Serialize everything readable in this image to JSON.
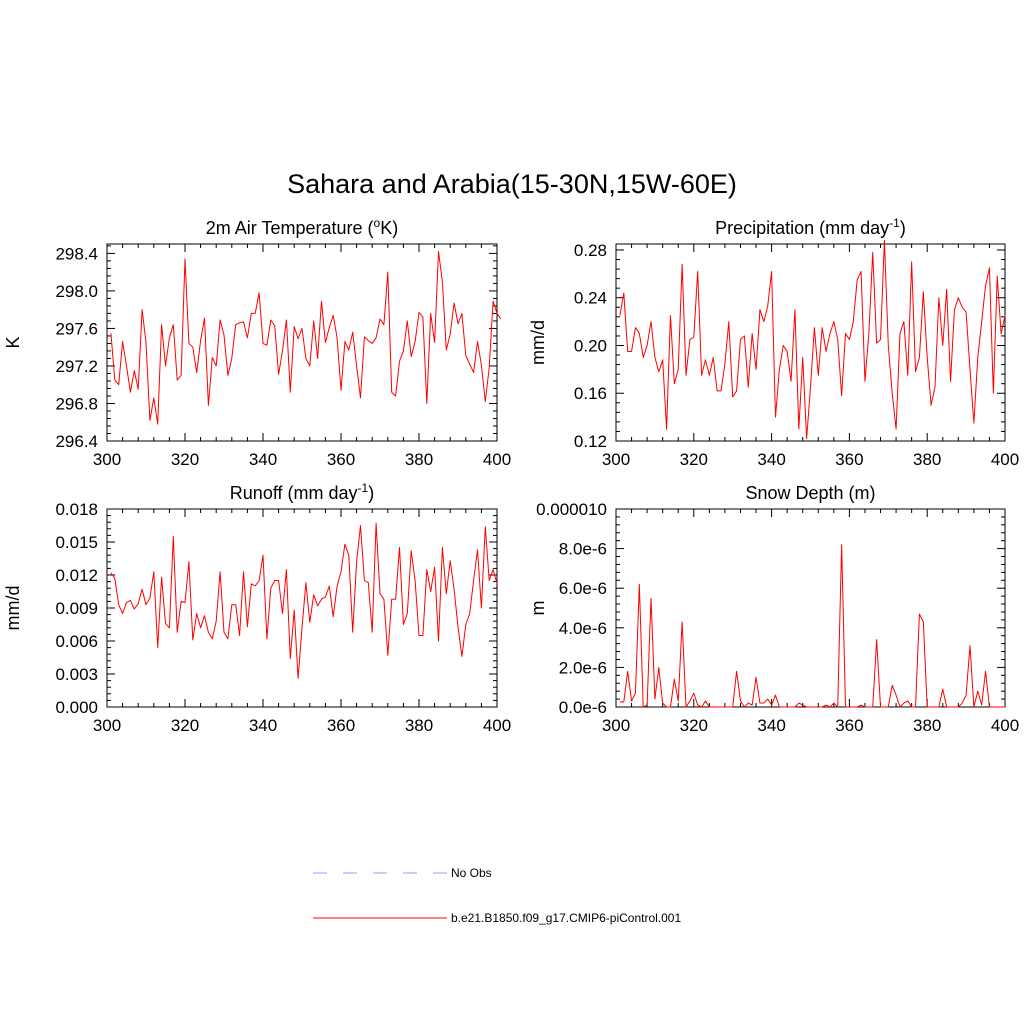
{
  "title": "Sahara and Arabia(15-30N,15W-60E)",
  "colors": {
    "model": "#ff0000",
    "obs": "#9999ff",
    "axis": "#000000"
  },
  "legend": [
    {
      "label": "No Obs",
      "style": "dashed",
      "color": "#9999ff"
    },
    {
      "label": "b.e21.B1850.f09_g17.CMIP6-piControl.001",
      "style": "solid",
      "color": "#ff0000"
    }
  ],
  "chart_data": [
    {
      "type": "line",
      "title_main": "2m Air Temperature (",
      "title_sup": "o",
      "title_end": "K)",
      "ylabel": "K",
      "xlim": [
        300,
        400
      ],
      "ylim": [
        296.4,
        298.5
      ],
      "xticks": [
        300,
        320,
        340,
        360,
        380,
        400
      ],
      "xtick_labels": [
        "300",
        "320",
        "340",
        "360",
        "380",
        "400"
      ],
      "yticks": [
        296.4,
        296.8,
        297.2,
        297.6,
        298.0,
        298.4
      ],
      "ytick_labels": [
        "296.4",
        "296.8",
        "297.2",
        "297.6",
        "298.0",
        "298.4"
      ],
      "series": [
        {
          "x_start": 301,
          "values": [
            297.55,
            297.05,
            297.0,
            297.46,
            297.2,
            296.92,
            297.15,
            296.95,
            297.8,
            297.45,
            296.62,
            296.86,
            296.58,
            297.64,
            297.2,
            297.5,
            297.64,
            297.05,
            297.1,
            298.34,
            297.44,
            297.4,
            297.13,
            297.47,
            297.71,
            296.78,
            297.29,
            297.2,
            297.69,
            297.53,
            297.1,
            297.28,
            297.64,
            297.66,
            297.67,
            297.5,
            297.76,
            297.76,
            297.98,
            297.44,
            297.42,
            297.69,
            297.63,
            297.11,
            297.36,
            297.69,
            296.92,
            297.62,
            297.49,
            297.6,
            297.28,
            297.2,
            297.68,
            297.28,
            297.89,
            297.45,
            297.61,
            297.74,
            297.5,
            296.94,
            297.46,
            297.37,
            297.56,
            297.2,
            296.86,
            297.51,
            297.47,
            297.44,
            297.5,
            297.7,
            297.64,
            298.2,
            296.92,
            296.88,
            297.25,
            297.36,
            297.68,
            297.3,
            297.46,
            297.77,
            297.72,
            296.8,
            297.76,
            297.45,
            298.42,
            298.1,
            297.37,
            297.54,
            297.87,
            297.65,
            297.76,
            297.31,
            297.22,
            297.13,
            297.46,
            297.21,
            296.82,
            297.18,
            297.89,
            297.76,
            297.7
          ]
        }
      ]
    },
    {
      "type": "line",
      "title_main": "Precipitation (mm day",
      "title_sup": "-1",
      "title_end": ")",
      "ylabel": "mm/d",
      "xlim": [
        300,
        400
      ],
      "ylim": [
        0.12,
        0.285
      ],
      "xticks": [
        300,
        320,
        340,
        360,
        380,
        400
      ],
      "xtick_labels": [
        "300",
        "320",
        "340",
        "360",
        "380",
        "400"
      ],
      "yticks": [
        0.12,
        0.16,
        0.2,
        0.24,
        0.28
      ],
      "ytick_labels": [
        "0.12",
        "0.16",
        "0.20",
        "0.24",
        "0.28"
      ],
      "series": [
        {
          "x_start": 301,
          "values": [
            0.225,
            0.244,
            0.195,
            0.195,
            0.215,
            0.21,
            0.19,
            0.2,
            0.22,
            0.19,
            0.178,
            0.188,
            0.13,
            0.225,
            0.168,
            0.18,
            0.268,
            0.175,
            0.205,
            0.207,
            0.262,
            0.175,
            0.188,
            0.175,
            0.19,
            0.162,
            0.162,
            0.185,
            0.22,
            0.157,
            0.162,
            0.205,
            0.208,
            0.165,
            0.21,
            0.18,
            0.23,
            0.22,
            0.233,
            0.262,
            0.14,
            0.18,
            0.2,
            0.195,
            0.17,
            0.23,
            0.13,
            0.19,
            0.122,
            0.165,
            0.215,
            0.175,
            0.215,
            0.195,
            0.21,
            0.22,
            0.205,
            0.158,
            0.21,
            0.205,
            0.22,
            0.255,
            0.262,
            0.17,
            0.21,
            0.278,
            0.202,
            0.205,
            0.288,
            0.2,
            0.16,
            0.13,
            0.21,
            0.22,
            0.175,
            0.27,
            0.178,
            0.19,
            0.245,
            0.19,
            0.15,
            0.165,
            0.24,
            0.2,
            0.247,
            0.17,
            0.23,
            0.24,
            0.232,
            0.228,
            0.18,
            0.135,
            0.19,
            0.22,
            0.25,
            0.265,
            0.16,
            0.258,
            0.21,
            0.225
          ]
        }
      ]
    },
    {
      "type": "line",
      "title_main": "Runoff (mm day",
      "title_sup": "-1",
      "title_end": ")",
      "ylabel": "mm/d",
      "xlim": [
        300,
        400
      ],
      "ylim": [
        0.0,
        0.018
      ],
      "xticks": [
        300,
        320,
        340,
        360,
        380,
        400
      ],
      "xtick_labels": [
        "300",
        "320",
        "340",
        "360",
        "380",
        "400"
      ],
      "yticks": [
        0.0,
        0.003,
        0.006,
        0.009,
        0.012,
        0.015,
        0.018
      ],
      "ytick_labels": [
        "0.000",
        "0.003",
        "0.006",
        "0.009",
        "0.012",
        "0.015",
        "0.018"
      ],
      "series": [
        {
          "x_start": 301,
          "values": [
            0.0122,
            0.0117,
            0.0093,
            0.0085,
            0.0095,
            0.0097,
            0.0089,
            0.0094,
            0.0107,
            0.0093,
            0.0099,
            0.0123,
            0.0054,
            0.0118,
            0.0076,
            0.0072,
            0.0155,
            0.0068,
            0.0096,
            0.0095,
            0.0132,
            0.0061,
            0.0085,
            0.0072,
            0.0083,
            0.0068,
            0.0062,
            0.0078,
            0.0123,
            0.0068,
            0.0062,
            0.0093,
            0.0093,
            0.0065,
            0.0123,
            0.0073,
            0.0112,
            0.011,
            0.0115,
            0.0138,
            0.0062,
            0.0108,
            0.0115,
            0.0115,
            0.0085,
            0.0125,
            0.0044,
            0.0088,
            0.0026,
            0.0072,
            0.0113,
            0.0077,
            0.0102,
            0.0092,
            0.0098,
            0.01,
            0.011,
            0.0082,
            0.011,
            0.0123,
            0.0148,
            0.0138,
            0.0068,
            0.0132,
            0.0165,
            0.0115,
            0.0113,
            0.0068,
            0.0167,
            0.0103,
            0.0098,
            0.0047,
            0.0098,
            0.0098,
            0.0145,
            0.0075,
            0.0085,
            0.0142,
            0.0115,
            0.0065,
            0.0065,
            0.0125,
            0.0105,
            0.0127,
            0.006,
            0.0145,
            0.0103,
            0.0133,
            0.0107,
            0.0073,
            0.0046,
            0.0075,
            0.0085,
            0.0115,
            0.0143,
            0.009,
            0.0164,
            0.0115,
            0.0125,
            0.0112
          ]
        }
      ]
    },
    {
      "type": "line",
      "title_main": "Snow Depth (m)",
      "title_sup": "",
      "title_end": "",
      "ylabel": "m",
      "xlim": [
        300,
        400
      ],
      "ylim": [
        0.0,
        1e-05
      ],
      "xticks": [
        300,
        320,
        340,
        360,
        380,
        400
      ],
      "xtick_labels": [
        "300",
        "320",
        "340",
        "360",
        "380",
        "400"
      ],
      "yticks": [
        0.0,
        2e-06,
        4e-06,
        6e-06,
        8e-06,
        1e-05
      ],
      "ytick_labels": [
        "0.0e-6",
        "2.0e-6",
        "4.0e-6",
        "6.0e-6",
        "8.0e-6",
        "0.000010"
      ],
      "series": [
        {
          "x_start": 301,
          "values": [
            2.5e-07,
            2.5e-07,
            1.8e-06,
            3e-07,
            7e-07,
            6.2e-06,
            0,
            1e-07,
            5.5e-06,
            4e-07,
            2e-06,
            2e-07,
            0,
            0,
            1.4e-06,
            3e-07,
            4.3e-06,
            0,
            3e-07,
            7e-07,
            1e-07,
            0,
            3e-07,
            0,
            0,
            0,
            0,
            0,
            0,
            0,
            1.8e-06,
            3e-07,
            0,
            2e-07,
            1e-07,
            1.5e-06,
            2e-07,
            2e-07,
            4e-07,
            1e-07,
            6e-07,
            0,
            0,
            0,
            0,
            0,
            2e-07,
            1e-07,
            0,
            0,
            0,
            0,
            0,
            1e-07,
            0,
            2e-07,
            0,
            8.2e-06,
            0,
            0,
            0,
            0,
            1e-07,
            0,
            0,
            0,
            3.4e-06,
            0,
            0,
            0,
            1.1e-06,
            6e-07,
            0,
            2e-07,
            3e-07,
            0,
            0,
            4.7e-06,
            4.3e-06,
            0,
            0,
            0,
            0,
            9e-07,
            0,
            0,
            0,
            0,
            2e-07,
            6e-07,
            3.1e-06,
            0,
            8e-07,
            1e-07,
            1.8e-06,
            0,
            0,
            0,
            0,
            0
          ]
        }
      ]
    }
  ]
}
